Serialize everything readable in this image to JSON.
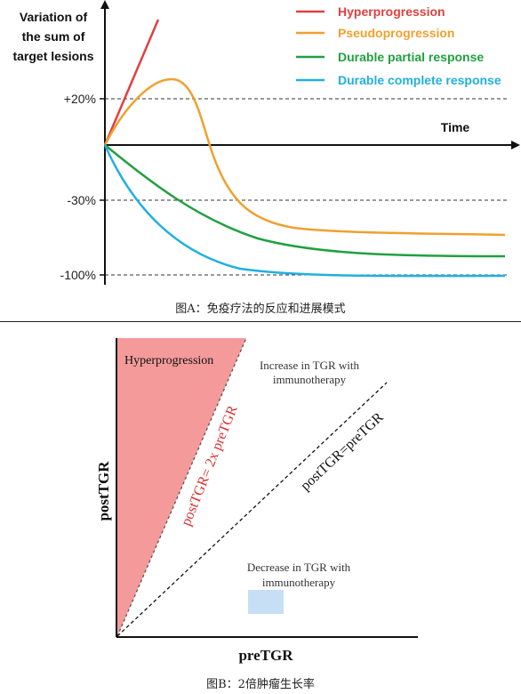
{
  "panel_a": {
    "ylabel_lines": [
      "Variation of",
      "the sum of",
      "target lesions"
    ],
    "xlabel": "Time",
    "ticks": [
      "+20%",
      "-30%",
      "-100%"
    ],
    "legend": [
      {
        "label": "Hyperprogression",
        "color": "#e04040"
      },
      {
        "label": "Pseudoprogression",
        "color": "#f0a030"
      },
      {
        "label": "Durable partial response",
        "color": "#20a040"
      },
      {
        "label": "Durable complete response",
        "color": "#20b0e0"
      }
    ],
    "caption": "图A：免疫疗法的反应和进展模式"
  },
  "panel_b": {
    "xlabel": "preTGR",
    "ylabel": "postTGR",
    "region_label": "Hyperprogression",
    "line_2x_label": "postTGR= 2x preTGR",
    "line_eq_label": "postTGR=preTGR",
    "increase_text_lines": [
      "Increase in TGR with",
      "immunotherapy"
    ],
    "decrease_text_lines": [
      "Decrease in TGR with",
      "immunotherapy"
    ],
    "colors": {
      "hyper_fill": "#f49a9a",
      "label_red": "#d83030",
      "decrease_box": "#c6dff5"
    },
    "caption": "图B：2倍肿瘤生长率"
  }
}
